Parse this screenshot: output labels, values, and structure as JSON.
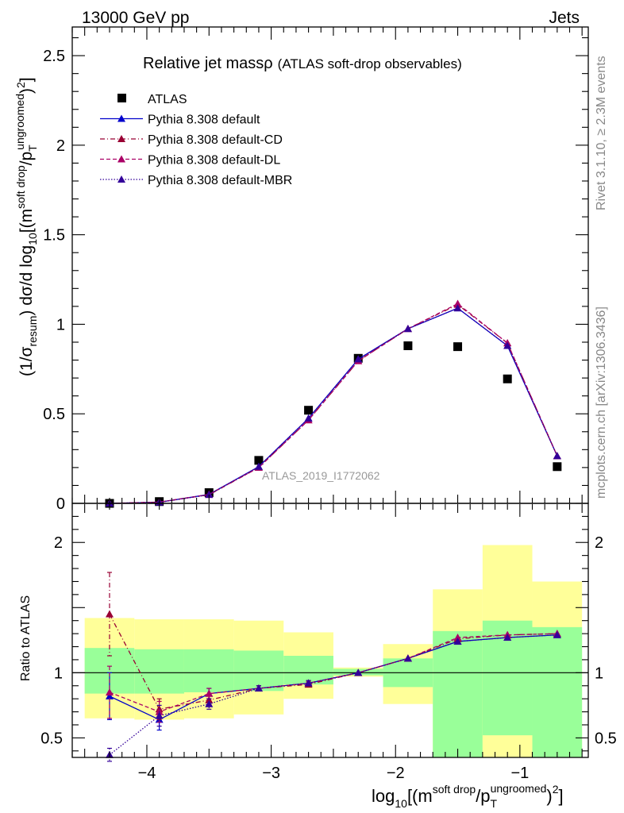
{
  "header": {
    "left": "13000 GeV pp",
    "right": "Jets"
  },
  "side_labels": {
    "rivet": "Rivet 3.1.10, ≥ 2.3M events",
    "mcplots": "mcplots.cern.ch [arXiv:1306.3436]"
  },
  "chart_data": {
    "type": "line",
    "title": "Relative jet massρ",
    "subtitle": "(ATLAS soft-drop observables)",
    "analysis_label": "ATLAS_2019_I1772062",
    "xlabel": "log10[(m^{soft drop}/p_T^{ungroomed})^2]",
    "xlabel_parts": {
      "base": "log",
      "sub": "10",
      "open": "[(m",
      "sup1": "soft drop",
      "mid": "/p",
      "sub2": "T",
      "sup2": "ungroomed",
      "close": ")",
      "sup3": "2",
      "end": "]"
    },
    "ylabel": "(1/σ_resum) dσ/d log10[(m^{soft drop}/p_T^{ungroomed})^2]",
    "ylabel_parts": {
      "a": "(1/σ",
      "sub1": "resum",
      "b": ") dσ/d log",
      "sub2": "10",
      "c": "[(m",
      "sup1": "soft drop",
      "d": "/p",
      "sub3": "T",
      "sup2": "ungroomed",
      "e": ")",
      "sup3": "2",
      "f": "]"
    },
    "ratio_ylabel": "Ratio to ATLAS",
    "xlim": [
      -4.6,
      -0.45
    ],
    "ylim": [
      0,
      2.66
    ],
    "ratio_ylim": [
      0.35,
      2.3
    ],
    "x_ticks": [
      -4,
      -3,
      -2,
      -1
    ],
    "x_tick_labels": [
      "−4",
      "−3",
      "−2",
      "−1"
    ],
    "y_ticks": [
      0,
      0.5,
      1,
      1.5,
      2,
      2.5
    ],
    "y_tick_labels": [
      "0",
      "0.5",
      "1",
      "1.5",
      "2",
      "2.5"
    ],
    "ratio_y_ticks": [
      0.5,
      1,
      2
    ],
    "ratio_y_tick_labels": [
      "0.5",
      "1",
      "2"
    ],
    "x": [
      -4.3,
      -3.9,
      -3.5,
      -3.1,
      -2.7,
      -2.3,
      -1.9,
      -1.5,
      -1.1,
      -0.7
    ],
    "bin_edges": [
      -4.5,
      -4.1,
      -3.7,
      -3.3,
      -2.9,
      -2.5,
      -2.1,
      -1.7,
      -1.3,
      -0.9,
      -0.5
    ],
    "series": [
      {
        "name": "ATLAS",
        "style": "data",
        "color": "#000000",
        "values": [
          0.0,
          0.01,
          0.06,
          0.24,
          0.52,
          0.81,
          0.88,
          0.875,
          0.695,
          0.205
        ]
      },
      {
        "name": "Pythia 8.308 default",
        "style": "solid",
        "color": "#0000cc",
        "values": [
          0.0,
          0.006,
          0.05,
          0.205,
          0.475,
          0.805,
          0.975,
          1.09,
          0.88,
          0.265
        ],
        "ratio": [
          0.82,
          0.64,
          0.84,
          0.88,
          0.92,
          1.0,
          1.11,
          1.24,
          1.27,
          1.29
        ],
        "ratio_err": [
          0.18,
          0.08,
          0.04,
          0.02,
          0.02,
          0.01,
          0.01,
          0.01,
          0.01,
          0.01
        ]
      },
      {
        "name": "Pythia 8.308 default-CD",
        "style": "dashdot",
        "color": "#990033",
        "values": [
          0.0,
          0.007,
          0.048,
          0.2,
          0.465,
          0.795,
          0.975,
          1.11,
          0.895,
          0.265
        ],
        "ratio": [
          1.45,
          0.72,
          0.79,
          0.88,
          0.91,
          1.0,
          1.11,
          1.26,
          1.29,
          1.3
        ],
        "ratio_err": [
          0.32,
          0.08,
          0.04,
          0.02,
          0.02,
          0.01,
          0.01,
          0.01,
          0.01,
          0.01
        ]
      },
      {
        "name": "Pythia 8.308 default-DL",
        "style": "dashed",
        "color": "#aa0066",
        "values": [
          0.0,
          0.007,
          0.05,
          0.2,
          0.465,
          0.795,
          0.975,
          1.115,
          0.895,
          0.265
        ],
        "ratio": [
          0.85,
          0.7,
          0.84,
          0.88,
          0.92,
          1.0,
          1.11,
          1.27,
          1.29,
          1.3
        ],
        "ratio_err": [
          0.2,
          0.08,
          0.04,
          0.02,
          0.02,
          0.01,
          0.01,
          0.01,
          0.01,
          0.01
        ]
      },
      {
        "name": "Pythia 8.308 default-MBR",
        "style": "dotted",
        "color": "#330099",
        "values": [
          0.0,
          0.006,
          0.048,
          0.205,
          0.475,
          0.805,
          0.975,
          1.09,
          0.88,
          0.265
        ],
        "ratio": [
          0.37,
          0.67,
          0.76,
          0.88,
          0.92,
          1.0,
          1.11,
          1.24,
          1.27,
          1.29
        ],
        "ratio_err": [
          0.05,
          0.08,
          0.04,
          0.02,
          0.02,
          0.01,
          0.01,
          0.01,
          0.01,
          0.01
        ]
      }
    ],
    "uncertainty_bands": {
      "green_color": "#99ff99",
      "yellow_color": "#ffff99",
      "green_low": [
        0.84,
        0.84,
        0.85,
        0.86,
        0.91,
        0.98,
        0.89,
        0.35,
        0.52,
        0.35
      ],
      "green_high": [
        1.19,
        1.18,
        1.18,
        1.17,
        1.13,
        1.03,
        1.11,
        1.32,
        1.4,
        1.35
      ],
      "yellow_low": [
        0.65,
        0.64,
        0.65,
        0.68,
        0.8,
        0.97,
        0.76,
        0.35,
        0.35,
        0.35
      ],
      "yellow_high": [
        1.42,
        1.41,
        1.41,
        1.4,
        1.31,
        1.04,
        1.22,
        1.64,
        1.98,
        1.7
      ]
    }
  }
}
